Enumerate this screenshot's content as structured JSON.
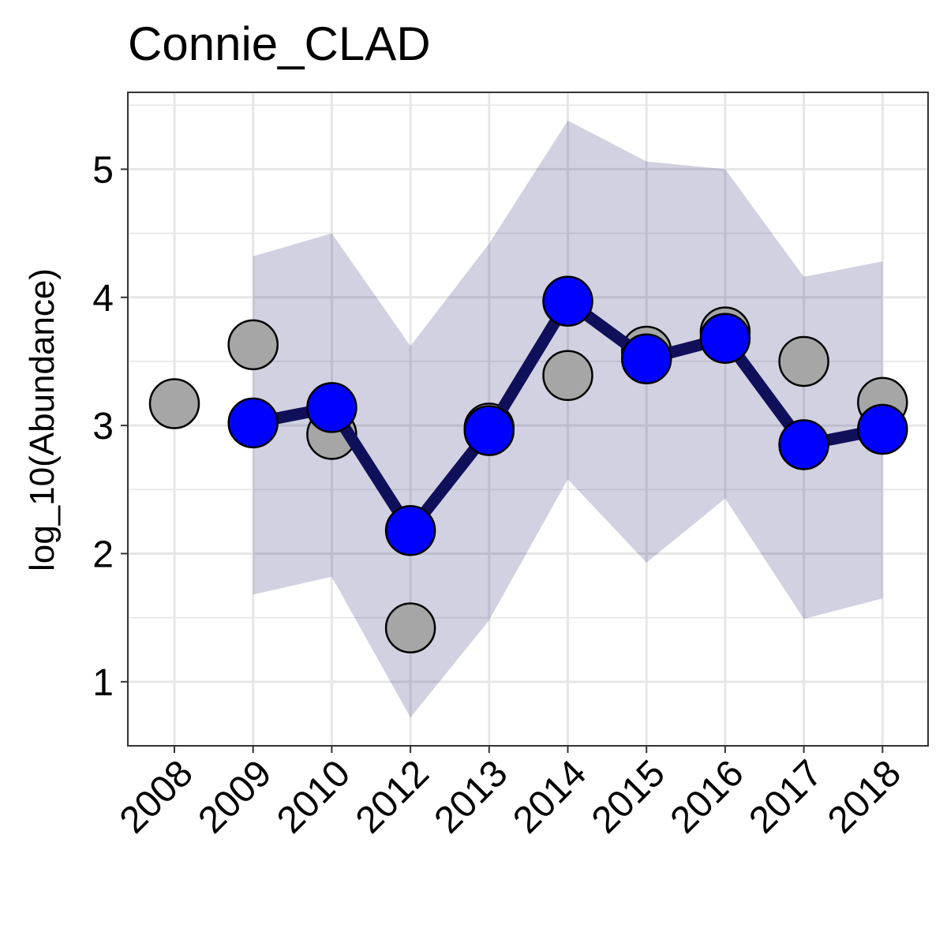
{
  "chart_data": {
    "type": "line",
    "title": "Connie_CLAD",
    "xlabel": "",
    "ylabel": "log_10(Abundance)",
    "categories": [
      "2008",
      "2009",
      "2010",
      "2012",
      "2013",
      "2014",
      "2015",
      "2016",
      "2017",
      "2018"
    ],
    "ylim": [
      0.5,
      5.6
    ],
    "y_ticks": [
      1,
      2,
      3,
      4,
      5
    ],
    "grid": true,
    "legend": "none",
    "colors": {
      "ribbon": "#1b1b6b",
      "line": "#10105a",
      "fitted_point": "#0000ff",
      "observed_point": "#a6a6a6",
      "grid": "#e6e6e6",
      "panel_border": "#333333"
    },
    "series": [
      {
        "role": "observed",
        "values": [
          3.17,
          3.63,
          2.93,
          1.42,
          2.98,
          3.39,
          3.58,
          3.73,
          3.5,
          3.18
        ]
      },
      {
        "role": "fitted",
        "values": [
          null,
          3.02,
          3.14,
          2.18,
          2.96,
          3.97,
          3.52,
          3.68,
          2.85,
          2.97
        ]
      }
    ],
    "ribbon": {
      "lower": [
        null,
        1.68,
        1.82,
        0.72,
        1.48,
        2.58,
        1.93,
        2.43,
        1.49,
        1.65
      ],
      "upper": [
        null,
        4.32,
        4.5,
        3.62,
        4.42,
        5.38,
        5.06,
        5.0,
        4.16,
        4.28
      ]
    }
  }
}
